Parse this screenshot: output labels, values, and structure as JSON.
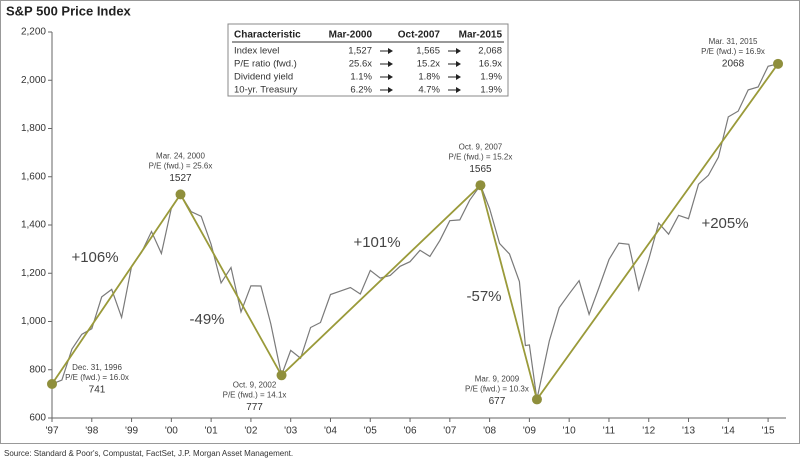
{
  "chart_data": {
    "type": "line",
    "title": "S&P 500 Price Index",
    "source": "Source: Standard & Poor's, Compustat, FactSet, J.P. Morgan Asset Management.",
    "xlim": [
      1997,
      2015.4
    ],
    "xticks": [
      {
        "value": 1997,
        "label": "'97"
      },
      {
        "value": 1998,
        "label": "'98"
      },
      {
        "value": 1999,
        "label": "'99"
      },
      {
        "value": 2000,
        "label": "'00"
      },
      {
        "value": 2001,
        "label": "'01"
      },
      {
        "value": 2002,
        "label": "'02"
      },
      {
        "value": 2003,
        "label": "'03"
      },
      {
        "value": 2004,
        "label": "'04"
      },
      {
        "value": 2005,
        "label": "'05"
      },
      {
        "value": 2006,
        "label": "'06"
      },
      {
        "value": 2007,
        "label": "'07"
      },
      {
        "value": 2008,
        "label": "'08"
      },
      {
        "value": 2009,
        "label": "'09"
      },
      {
        "value": 2010,
        "label": "'10"
      },
      {
        "value": 2011,
        "label": "'11"
      },
      {
        "value": 2012,
        "label": "'12"
      },
      {
        "value": 2013,
        "label": "'13"
      },
      {
        "value": 2014,
        "label": "'14"
      },
      {
        "value": 2015,
        "label": "'15"
      }
    ],
    "ylim": [
      600,
      2200
    ],
    "yticks": [
      600,
      800,
      {
        "value": 1000,
        "label": "1,000"
      },
      {
        "value": 1200,
        "label": "1,200"
      },
      {
        "value": 1400,
        "label": "1,400"
      },
      {
        "value": 1600,
        "label": "1,600"
      },
      {
        "value": 1800,
        "label": "1,800"
      },
      {
        "value": 2000,
        "label": "2,000"
      },
      {
        "value": 2200,
        "label": "2,200"
      }
    ],
    "series": [
      {
        "color": "#7a7a7a",
        "x": [
          1997,
          1997.25,
          1997.5,
          1997.75,
          1998,
          1998.25,
          1998.5,
          1998.75,
          1999,
          1999.25,
          1999.5,
          1999.75,
          2000,
          2000.23,
          2000.5,
          2000.75,
          2001,
          2001.25,
          2001.5,
          2001.75,
          2002,
          2002.25,
          2002.5,
          2002.77,
          2003,
          2003.25,
          2003.5,
          2003.75,
          2004,
          2004.25,
          2004.5,
          2004.75,
          2005,
          2005.25,
          2005.5,
          2005.75,
          2006,
          2006.25,
          2006.5,
          2006.75,
          2007,
          2007.25,
          2007.5,
          2007.77,
          2008,
          2008.25,
          2008.5,
          2008.75,
          2008.9,
          2009,
          2009.19,
          2009.5,
          2009.75,
          2010,
          2010.25,
          2010.5,
          2010.75,
          2011,
          2011.25,
          2011.5,
          2011.75,
          2012,
          2012.25,
          2012.5,
          2012.75,
          2013,
          2013.25,
          2013.5,
          2013.75,
          2014,
          2014.25,
          2014.5,
          2014.75,
          2015,
          2015.25
        ],
        "values": [
          741,
          757,
          885,
          947,
          970,
          1102,
          1133,
          1017,
          1229,
          1286,
          1373,
          1282,
          1469,
          1527,
          1455,
          1436,
          1320,
          1160,
          1224,
          1040,
          1148,
          1147,
          990,
          777,
          880,
          848,
          975,
          996,
          1112,
          1126,
          1141,
          1114,
          1212,
          1180,
          1191,
          1229,
          1248,
          1295,
          1270,
          1336,
          1418,
          1421,
          1503,
          1565,
          1468,
          1323,
          1280,
          1166,
          900,
          903,
          677,
          919,
          1057,
          1115,
          1169,
          1030,
          1141,
          1257,
          1325,
          1320,
          1131,
          1257,
          1408,
          1362,
          1440,
          1426,
          1569,
          1606,
          1681,
          1848,
          1872,
          1960,
          1972,
          2058,
          2068
        ]
      },
      {
        "color": "#9a9a3a",
        "x": [
          1997,
          2000.23,
          2002.77,
          2007.77,
          2009.19,
          2015.25
        ],
        "values": [
          741,
          1527,
          777,
          1565,
          677,
          2068
        ]
      }
    ],
    "annotations": [
      {
        "date": "Dec. 31, 1996",
        "pe": "P/E (fwd.) = 16.0x"
      },
      {
        "date": "Mar. 24, 2000",
        "pe": "P/E (fwd.) = 25.6x"
      },
      {
        "date": "Oct. 9, 2002",
        "pe": "P/E (fwd.) = 14.1x"
      },
      {
        "date": "Oct. 9, 2007",
        "pe": "P/E (fwd.) = 15.2x"
      },
      {
        "date": "Mar. 9, 2009",
        "pe": "P/E (fwd.) = 10.3x"
      },
      {
        "date": "Mar. 31, 2015",
        "pe": "P/E (fwd.) = 16.9x"
      }
    ],
    "segment_labels": [
      "+106%",
      "-49%",
      "+101%",
      "-57%",
      "+205%"
    ],
    "table": {
      "columns": [
        "Characteristic",
        "Mar-2000",
        "Oct-2007",
        "Mar-2015"
      ],
      "rows": [
        [
          "Index level",
          "1,527",
          "1,565",
          "2,068"
        ],
        [
          "P/E ratio (fwd.)",
          "25.6x",
          "15.2x",
          "16.9x"
        ],
        [
          "Dividend yield",
          "1.1%",
          "1.8%",
          "1.9%"
        ],
        [
          "10-yr. Treasury",
          "6.2%",
          "4.7%",
          "1.9%"
        ]
      ]
    }
  }
}
